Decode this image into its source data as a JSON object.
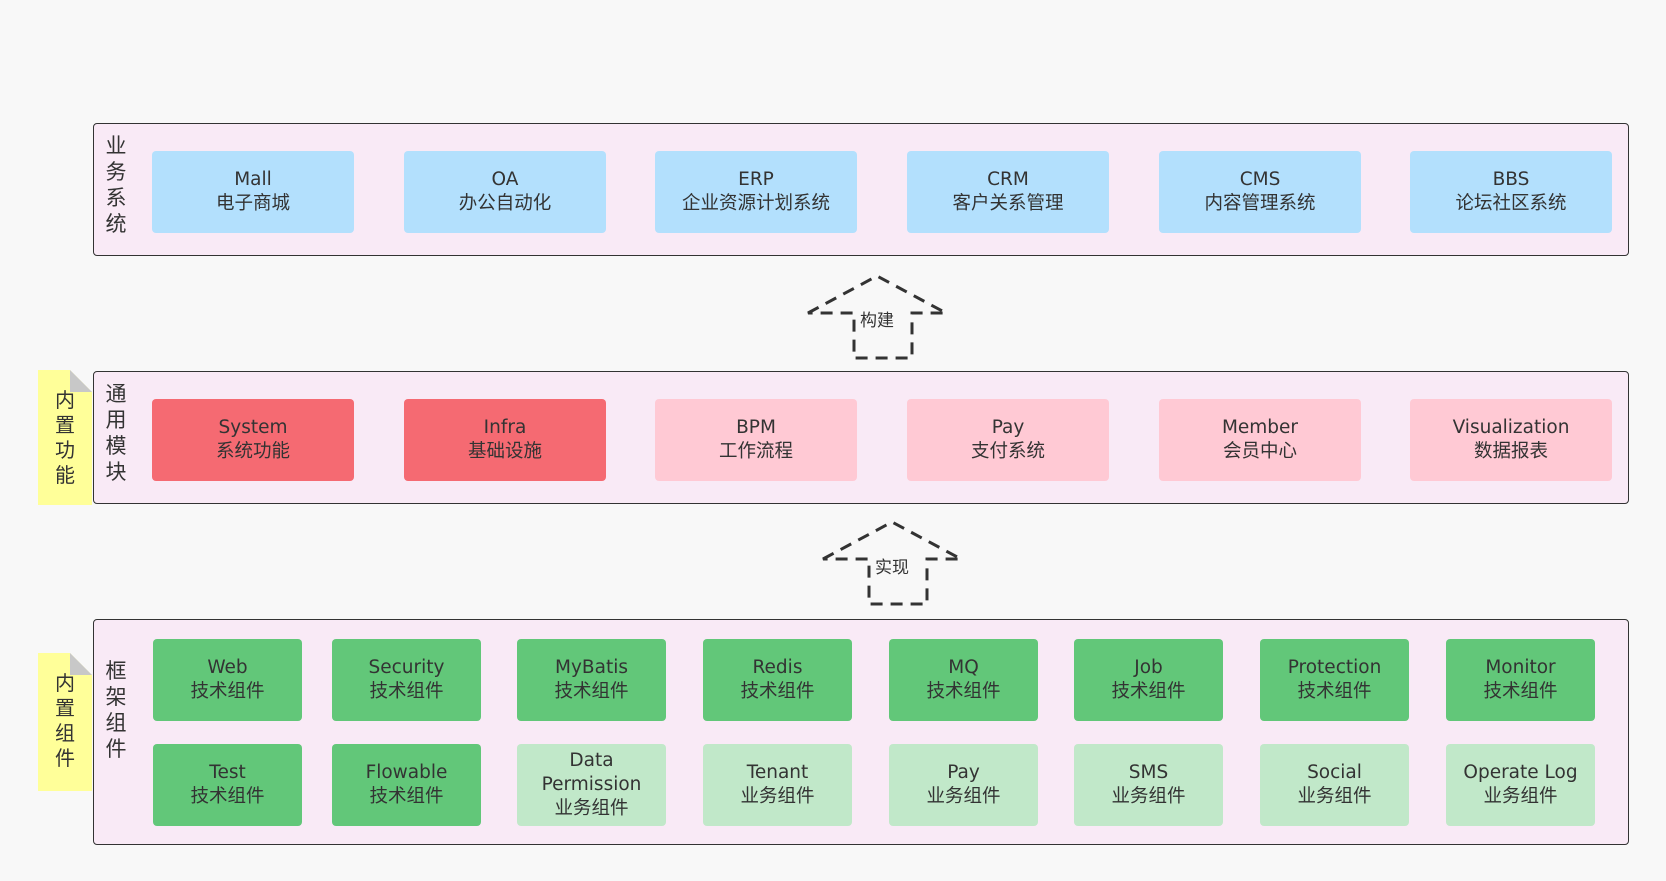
{
  "business": {
    "title": "业务系统",
    "items": [
      {
        "name": "Mall",
        "desc": "电子商城"
      },
      {
        "name": "OA",
        "desc": "办公自动化"
      },
      {
        "name": "ERP",
        "desc": "企业资源计划系统"
      },
      {
        "name": "CRM",
        "desc": "客户关系管理"
      },
      {
        "name": "CMS",
        "desc": "内容管理系统"
      },
      {
        "name": "BBS",
        "desc": "论坛社区系统"
      }
    ]
  },
  "arrows": {
    "build": "构建",
    "implement": "实现"
  },
  "common": {
    "title": "通用模块",
    "note": "内置功能",
    "items": [
      {
        "name": "System",
        "desc": "系统功能"
      },
      {
        "name": "Infra",
        "desc": "基础设施"
      },
      {
        "name": "BPM",
        "desc": "工作流程"
      },
      {
        "name": "Pay",
        "desc": "支付系统"
      },
      {
        "name": "Member",
        "desc": "会员中心"
      },
      {
        "name": "Visualization",
        "desc": "数据报表"
      }
    ]
  },
  "framework": {
    "title": "框架组件",
    "note": "内置组件",
    "row1": [
      {
        "name": "Web",
        "desc": "技术组件"
      },
      {
        "name": "Security",
        "desc": "技术组件"
      },
      {
        "name": "MyBatis",
        "desc": "技术组件"
      },
      {
        "name": "Redis",
        "desc": "技术组件"
      },
      {
        "name": "MQ",
        "desc": "技术组件"
      },
      {
        "name": "Job",
        "desc": "技术组件"
      },
      {
        "name": "Protection",
        "desc": "技术组件"
      },
      {
        "name": "Monitor",
        "desc": "技术组件"
      }
    ],
    "row2": [
      {
        "name": "Test",
        "desc": "技术组件"
      },
      {
        "name": "Flowable",
        "desc": "技术组件"
      },
      {
        "name": "Data Permission",
        "desc": "业务组件"
      },
      {
        "name": "Tenant",
        "desc": "业务组件"
      },
      {
        "name": "Pay",
        "desc": "业务组件"
      },
      {
        "name": "SMS",
        "desc": "业务组件"
      },
      {
        "name": "Social",
        "desc": "业务组件"
      },
      {
        "name": "Operate Log",
        "desc": "业务组件"
      }
    ]
  },
  "colors": {
    "panel_bg": "#f9eaf6",
    "business_box": "#b3e0fd",
    "common_core": "#f56a72",
    "common_ext": "#ffc9d4",
    "tech_component": "#62c779",
    "biz_component": "#c1e8c9",
    "note_bg": "#ffff99"
  }
}
